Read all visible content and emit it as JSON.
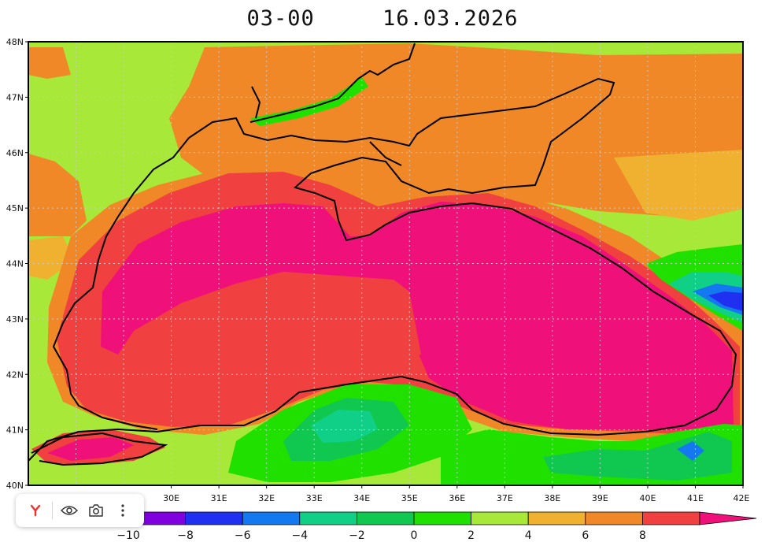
{
  "title": {
    "time": "03-00",
    "date": "16.03.2026"
  },
  "map": {
    "lat_ticks": [
      "40N",
      "41N",
      "42N",
      "43N",
      "44N",
      "45N",
      "46N",
      "47N",
      "48N"
    ],
    "lon_ticks": [
      "30E",
      "31E",
      "32E",
      "33E",
      "34E",
      "35E",
      "36E",
      "37E",
      "38E",
      "39E",
      "40E",
      "41E",
      "42E"
    ],
    "lon_range": [
      27.0,
      42.0
    ],
    "lat_range": [
      40.0,
      48.0
    ],
    "grid": true
  },
  "colorbar": {
    "labels": [
      "−10",
      "−8",
      "−6",
      "−4",
      "−2",
      "0",
      "2",
      "4",
      "6",
      "8"
    ],
    "colors": [
      "#8000e0",
      "#2030f0",
      "#1478f0",
      "#10d088",
      "#10c850",
      "#20e000",
      "#a8e838",
      "#f0b030",
      "#f08828",
      "#f04040",
      "#f0107a"
    ]
  },
  "toolbar": {
    "items": [
      "yandex-icon",
      "eye-icon",
      "camera-icon",
      "more-icon"
    ]
  }
}
